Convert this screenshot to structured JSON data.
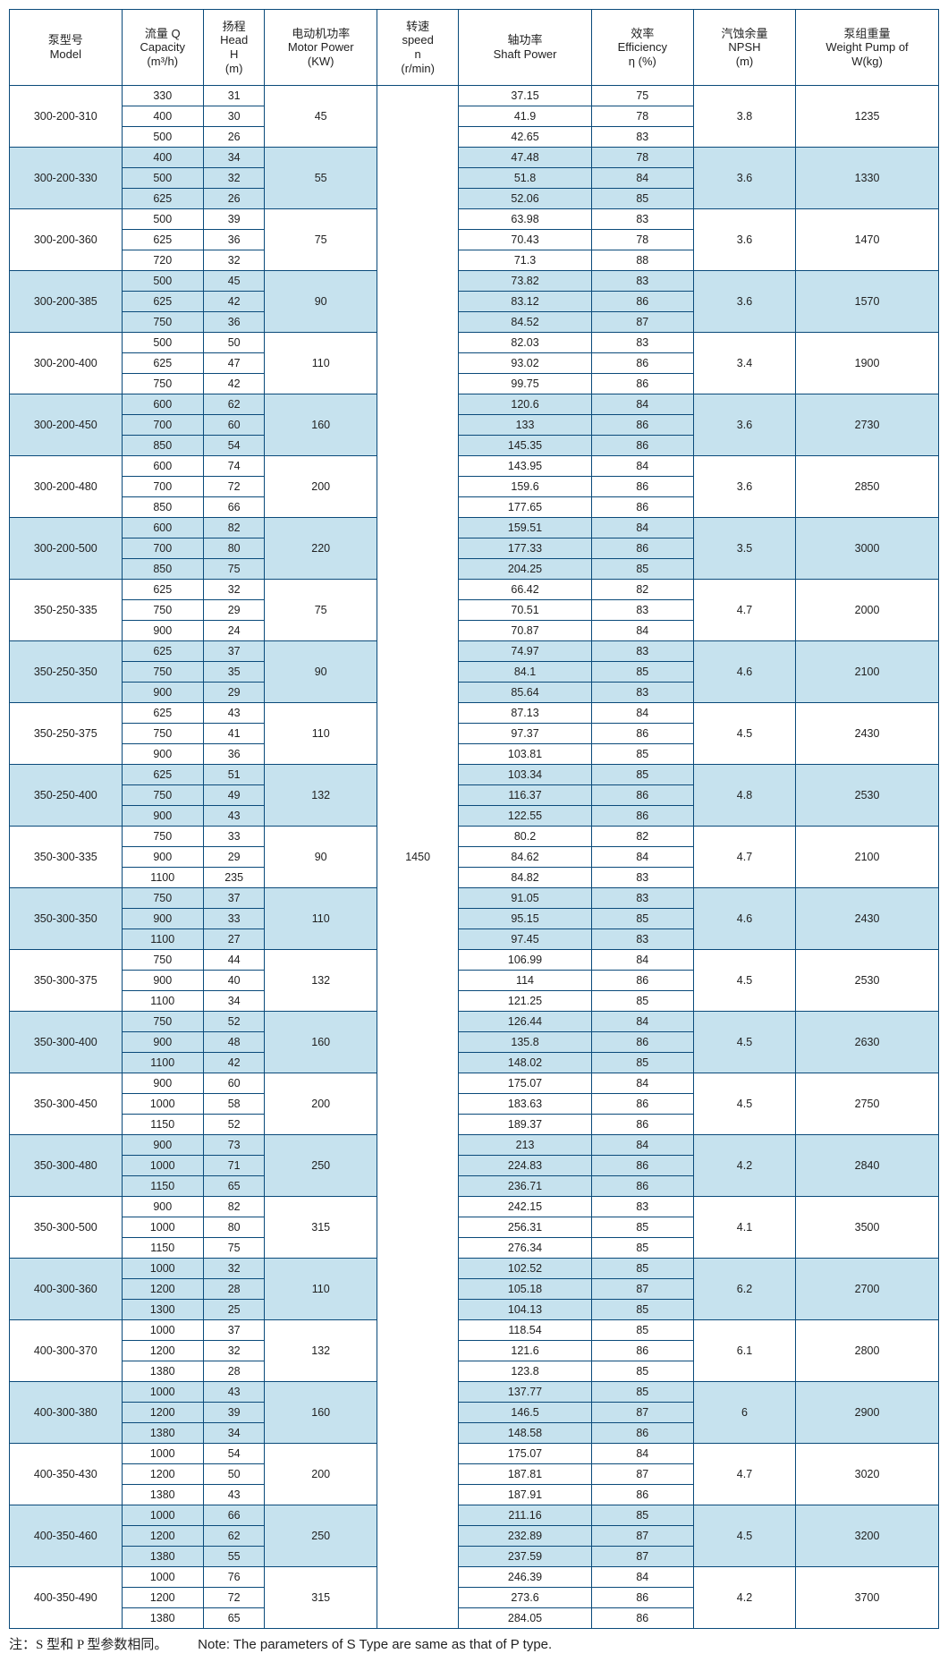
{
  "headers": [
    "泵型号\nModel",
    "流量 Q\nCapacity\n(m³/h)",
    "扬程\nHead\nH\n(m)",
    "电动机功率\nMotor Power\n(KW)",
    "转速\nspeed\nn\n(r/min)",
    "轴功率\nShaft Power",
    "效率\nEfficiency\nη (%)",
    "汽蚀余量\nNPSH\n(m)",
    "泵组重量\nWeight Pump of\nW(kg)"
  ],
  "speed": "1450",
  "groups": [
    {
      "model": "300-200-310",
      "motor": "45",
      "npsh": "3.8",
      "weight": "1235",
      "shade": false,
      "rows": [
        [
          "330",
          "31",
          "37.15",
          "75"
        ],
        [
          "400",
          "30",
          "41.9",
          "78"
        ],
        [
          "500",
          "26",
          "42.65",
          "83"
        ]
      ]
    },
    {
      "model": "300-200-330",
      "motor": "55",
      "npsh": "3.6",
      "weight": "1330",
      "shade": true,
      "rows": [
        [
          "400",
          "34",
          "47.48",
          "78"
        ],
        [
          "500",
          "32",
          "51.8",
          "84"
        ],
        [
          "625",
          "26",
          "52.06",
          "85"
        ]
      ]
    },
    {
      "model": "300-200-360",
      "motor": "75",
      "npsh": "3.6",
      "weight": "1470",
      "shade": false,
      "rows": [
        [
          "500",
          "39",
          "63.98",
          "83"
        ],
        [
          "625",
          "36",
          "70.43",
          "78"
        ],
        [
          "720",
          "32",
          "71.3",
          "88"
        ]
      ]
    },
    {
      "model": "300-200-385",
      "motor": "90",
      "npsh": "3.6",
      "weight": "1570",
      "shade": true,
      "rows": [
        [
          "500",
          "45",
          "73.82",
          "83"
        ],
        [
          "625",
          "42",
          "83.12",
          "86"
        ],
        [
          "750",
          "36",
          "84.52",
          "87"
        ]
      ]
    },
    {
      "model": "300-200-400",
      "motor": "110",
      "npsh": "3.4",
      "weight": "1900",
      "shade": false,
      "rows": [
        [
          "500",
          "50",
          "82.03",
          "83"
        ],
        [
          "625",
          "47",
          "93.02",
          "86"
        ],
        [
          "750",
          "42",
          "99.75",
          "86"
        ]
      ]
    },
    {
      "model": "300-200-450",
      "motor": "160",
      "npsh": "3.6",
      "weight": "2730",
      "shade": true,
      "rows": [
        [
          "600",
          "62",
          "120.6",
          "84"
        ],
        [
          "700",
          "60",
          "133",
          "86"
        ],
        [
          "850",
          "54",
          "145.35",
          "86"
        ]
      ]
    },
    {
      "model": "300-200-480",
      "motor": "200",
      "npsh": "3.6",
      "weight": "2850",
      "shade": false,
      "rows": [
        [
          "600",
          "74",
          "143.95",
          "84"
        ],
        [
          "700",
          "72",
          "159.6",
          "86"
        ],
        [
          "850",
          "66",
          "177.65",
          "86"
        ]
      ]
    },
    {
      "model": "300-200-500",
      "motor": "220",
      "npsh": "3.5",
      "weight": "3000",
      "shade": true,
      "rows": [
        [
          "600",
          "82",
          "159.51",
          "84"
        ],
        [
          "700",
          "80",
          "177.33",
          "86"
        ],
        [
          "850",
          "75",
          "204.25",
          "85"
        ]
      ]
    },
    {
      "model": "350-250-335",
      "motor": "75",
      "npsh": "4.7",
      "weight": "2000",
      "shade": false,
      "rows": [
        [
          "625",
          "32",
          "66.42",
          "82"
        ],
        [
          "750",
          "29",
          "70.51",
          "83"
        ],
        [
          "900",
          "24",
          "70.87",
          "84"
        ]
      ]
    },
    {
      "model": "350-250-350",
      "motor": "90",
      "npsh": "4.6",
      "weight": "2100",
      "shade": true,
      "rows": [
        [
          "625",
          "37",
          "74.97",
          "83"
        ],
        [
          "750",
          "35",
          "84.1",
          "85"
        ],
        [
          "900",
          "29",
          "85.64",
          "83"
        ]
      ]
    },
    {
      "model": "350-250-375",
      "motor": "110",
      "npsh": "4.5",
      "weight": "2430",
      "shade": false,
      "rows": [
        [
          "625",
          "43",
          "87.13",
          "84"
        ],
        [
          "750",
          "41",
          "97.37",
          "86"
        ],
        [
          "900",
          "36",
          "103.81",
          "85"
        ]
      ]
    },
    {
      "model": "350-250-400",
      "motor": "132",
      "npsh": "4.8",
      "weight": "2530",
      "shade": true,
      "rows": [
        [
          "625",
          "51",
          "103.34",
          "85"
        ],
        [
          "750",
          "49",
          "116.37",
          "86"
        ],
        [
          "900",
          "43",
          "122.55",
          "86"
        ]
      ]
    },
    {
      "model": "350-300-335",
      "motor": "90",
      "npsh": "4.7",
      "weight": "2100",
      "shade": false,
      "rows": [
        [
          "750",
          "33",
          "80.2",
          "82"
        ],
        [
          "900",
          "29",
          "84.62",
          "84"
        ],
        [
          "1100",
          "235",
          "84.82",
          "83"
        ]
      ]
    },
    {
      "model": "350-300-350",
      "motor": "110",
      "npsh": "4.6",
      "weight": "2430",
      "shade": true,
      "rows": [
        [
          "750",
          "37",
          "91.05",
          "83"
        ],
        [
          "900",
          "33",
          "95.15",
          "85"
        ],
        [
          "1100",
          "27",
          "97.45",
          "83"
        ]
      ]
    },
    {
      "model": "350-300-375",
      "motor": "132",
      "npsh": "4.5",
      "weight": "2530",
      "shade": false,
      "rows": [
        [
          "750",
          "44",
          "106.99",
          "84"
        ],
        [
          "900",
          "40",
          "114",
          "86"
        ],
        [
          "1100",
          "34",
          "121.25",
          "85"
        ]
      ]
    },
    {
      "model": "350-300-400",
      "motor": "160",
      "npsh": "4.5",
      "weight": "2630",
      "shade": true,
      "rows": [
        [
          "750",
          "52",
          "126.44",
          "84"
        ],
        [
          "900",
          "48",
          "135.8",
          "86"
        ],
        [
          "1100",
          "42",
          "148.02",
          "85"
        ]
      ]
    },
    {
      "model": "350-300-450",
      "motor": "200",
      "npsh": "4.5",
      "weight": "2750",
      "shade": false,
      "rows": [
        [
          "900",
          "60",
          "175.07",
          "84"
        ],
        [
          "1000",
          "58",
          "183.63",
          "86"
        ],
        [
          "1150",
          "52",
          "189.37",
          "86"
        ]
      ]
    },
    {
      "model": "350-300-480",
      "motor": "250",
      "npsh": "4.2",
      "weight": "2840",
      "shade": true,
      "rows": [
        [
          "900",
          "73",
          "213",
          "84"
        ],
        [
          "1000",
          "71",
          "224.83",
          "86"
        ],
        [
          "1150",
          "65",
          "236.71",
          "86"
        ]
      ]
    },
    {
      "model": "350-300-500",
      "motor": "315",
      "npsh": "4.1",
      "weight": "3500",
      "shade": false,
      "rows": [
        [
          "900",
          "82",
          "242.15",
          "83"
        ],
        [
          "1000",
          "80",
          "256.31",
          "85"
        ],
        [
          "1150",
          "75",
          "276.34",
          "85"
        ]
      ]
    },
    {
      "model": "400-300-360",
      "motor": "110",
      "npsh": "6.2",
      "weight": "2700",
      "shade": true,
      "rows": [
        [
          "1000",
          "32",
          "102.52",
          "85"
        ],
        [
          "1200",
          "28",
          "105.18",
          "87"
        ],
        [
          "1300",
          "25",
          "104.13",
          "85"
        ]
      ]
    },
    {
      "model": "400-300-370",
      "motor": "132",
      "npsh": "6.1",
      "weight": "2800",
      "shade": false,
      "rows": [
        [
          "1000",
          "37",
          "118.54",
          "85"
        ],
        [
          "1200",
          "32",
          "121.6",
          "86"
        ],
        [
          "1380",
          "28",
          "123.8",
          "85"
        ]
      ]
    },
    {
      "model": "400-300-380",
      "motor": "160",
      "npsh": "6",
      "weight": "2900",
      "shade": true,
      "rows": [
        [
          "1000",
          "43",
          "137.77",
          "85"
        ],
        [
          "1200",
          "39",
          "146.5",
          "87"
        ],
        [
          "1380",
          "34",
          "148.58",
          "86"
        ]
      ]
    },
    {
      "model": "400-350-430",
      "motor": "200",
      "npsh": "4.7",
      "weight": "3020",
      "shade": false,
      "rows": [
        [
          "1000",
          "54",
          "175.07",
          "84"
        ],
        [
          "1200",
          "50",
          "187.81",
          "87"
        ],
        [
          "1380",
          "43",
          "187.91",
          "86"
        ]
      ]
    },
    {
      "model": "400-350-460",
      "motor": "250",
      "npsh": "4.5",
      "weight": "3200",
      "shade": true,
      "rows": [
        [
          "1000",
          "66",
          "211.16",
          "85"
        ],
        [
          "1200",
          "62",
          "232.89",
          "87"
        ],
        [
          "1380",
          "55",
          "237.59",
          "87"
        ]
      ]
    },
    {
      "model": "400-350-490",
      "motor": "315",
      "npsh": "4.2",
      "weight": "3700",
      "shade": false,
      "rows": [
        [
          "1000",
          "76",
          "246.39",
          "84"
        ],
        [
          "1200",
          "72",
          "273.6",
          "86"
        ],
        [
          "1380",
          "65",
          "284.05",
          "86"
        ]
      ]
    }
  ],
  "note_zh": "注：S 型和 P 型参数相同。",
  "note_en": "Note: The parameters of S Type are same as that of P type.",
  "colors": {
    "shade": "#c6e2ee",
    "border": "#0a4a7a",
    "background": "#ffffff"
  }
}
